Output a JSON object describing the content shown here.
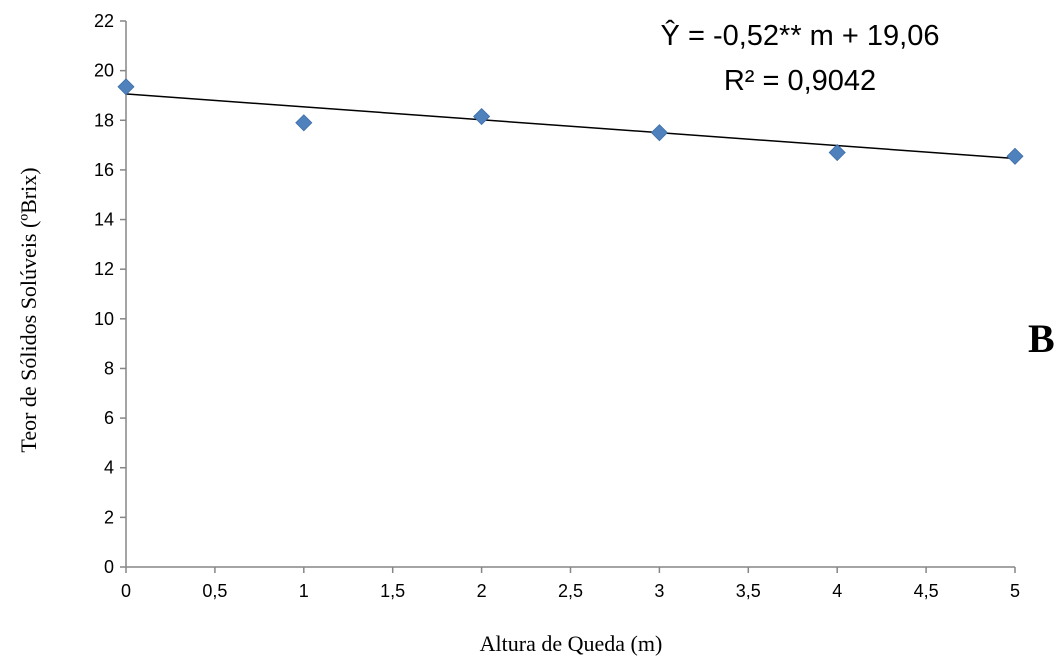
{
  "chart_data": {
    "type": "scatter",
    "title": "",
    "xlabel": "Altura de Queda (m)",
    "ylabel": "Teor de Sólidos Solúveis (ºBrix)",
    "xlim": [
      0,
      5
    ],
    "ylim": [
      0,
      22
    ],
    "x_ticks": [
      "0",
      "0,5",
      "1",
      "1,5",
      "2",
      "2,5",
      "3",
      "3,5",
      "4",
      "4,5",
      "5"
    ],
    "y_ticks": [
      "0",
      "2",
      "4",
      "6",
      "8",
      "10",
      "12",
      "14",
      "16",
      "18",
      "20",
      "22"
    ],
    "grid": false,
    "legend": "none",
    "marker_color": "#4F81BD",
    "trendline_color": "#000000",
    "series": [
      {
        "x": [
          0,
          1,
          2,
          3,
          4,
          5
        ],
        "y": [
          19.35,
          17.9,
          18.15,
          17.5,
          16.7,
          16.55
        ]
      }
    ],
    "trendline": {
      "slope": -0.52,
      "intercept": 19.06
    },
    "annotations": {
      "equation": "Ŷ = -0,52** m + 19,06",
      "r_squared": "R² = 0,9042",
      "panel_letter": "B"
    }
  }
}
